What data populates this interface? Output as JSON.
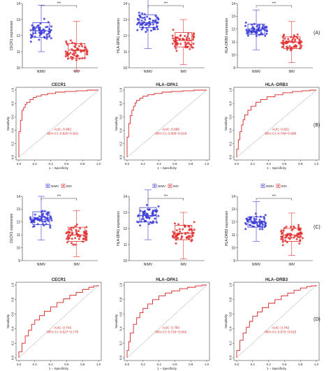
{
  "panel_labels": [
    "(A)",
    "(B)",
    "(C)",
    "(D)"
  ],
  "chart_data": [
    {
      "type": "box",
      "panel": "A",
      "ylabel": "CECR1 expression",
      "categories": [
        "NIMV",
        "IMV"
      ],
      "ylim": [
        10,
        14
      ],
      "yticks": [
        10,
        11,
        12,
        13,
        14
      ],
      "significance": "***",
      "boxes": [
        {
          "name": "NIMV",
          "color": "#3b3bd6",
          "whisker_low": 11.0,
          "q1": 11.9,
          "median": 12.3,
          "q3": 12.8,
          "whisker_high": 13.9
        },
        {
          "name": "IMV",
          "color": "#e03030",
          "whisker_low": 9.8,
          "q1": 10.6,
          "median": 11.1,
          "q3": 11.5,
          "whisker_high": 12.9
        }
      ]
    },
    {
      "type": "box",
      "panel": "A",
      "ylabel": "HLA-DPA1 expression",
      "categories": [
        "NIMV",
        "IMV"
      ],
      "ylim": [
        10,
        14
      ],
      "yticks": [
        10,
        11,
        12,
        13,
        14
      ],
      "significance": "***",
      "boxes": [
        {
          "name": "NIMV",
          "color": "#3b3bd6",
          "whisker_low": 11.2,
          "q1": 12.5,
          "median": 12.8,
          "q3": 13.3,
          "whisker_high": 14.3
        },
        {
          "name": "IMV",
          "color": "#e03030",
          "whisker_low": 10.2,
          "q1": 11.3,
          "median": 11.7,
          "q3": 12.2,
          "whisker_high": 13.0
        }
      ]
    },
    {
      "type": "box",
      "panel": "A",
      "ylabel": "HLA-DRB3 expression",
      "categories": [
        "NIMV",
        "IMV"
      ],
      "ylim": [
        9,
        14
      ],
      "yticks": [
        9,
        10,
        11,
        12,
        13,
        14
      ],
      "significance": "***",
      "boxes": [
        {
          "name": "NIMV",
          "color": "#3b3bd6",
          "whisker_low": 10.4,
          "q1": 11.6,
          "median": 12.0,
          "q3": 12.4,
          "whisker_high": 13.5
        },
        {
          "name": "IMV",
          "color": "#e03030",
          "whisker_low": 9.4,
          "q1": 10.5,
          "median": 11.0,
          "q3": 11.4,
          "whisker_high": 12.6
        }
      ]
    },
    {
      "type": "line",
      "panel": "B",
      "title": "CECR1",
      "xlabel": "1 − Specificity",
      "ylabel": "Sensitivity",
      "xlim": [
        0,
        1
      ],
      "ylim": [
        0,
        1
      ],
      "xticks": [
        0.0,
        0.2,
        0.4,
        0.6,
        0.8,
        1.0
      ],
      "yticks": [
        0.0,
        0.2,
        0.4,
        0.6,
        0.8,
        1.0
      ],
      "annotation": [
        "AUC: 0.862",
        "95% CI: 0.820−0.921"
      ],
      "x": [
        0,
        0.0,
        0.02,
        0.02,
        0.04,
        0.04,
        0.06,
        0.08,
        0.1,
        0.14,
        0.18,
        0.22,
        0.28,
        0.36,
        0.46,
        0.58,
        0.72,
        0.86,
        1.0
      ],
      "y": [
        0,
        0.38,
        0.42,
        0.55,
        0.6,
        0.7,
        0.74,
        0.79,
        0.82,
        0.86,
        0.89,
        0.91,
        0.93,
        0.95,
        0.97,
        0.98,
        0.99,
        1.0,
        1.0
      ]
    },
    {
      "type": "line",
      "panel": "B",
      "title": "HLA−DPA1",
      "xlabel": "1 − Specificity",
      "ylabel": "Sensitivity",
      "xlim": [
        0,
        1
      ],
      "ylim": [
        0,
        1
      ],
      "xticks": [
        0.0,
        0.2,
        0.4,
        0.6,
        0.8,
        1.0
      ],
      "yticks": [
        0.0,
        0.2,
        0.4,
        0.6,
        0.8,
        1.0
      ],
      "annotation": [
        "AUC: 0.866",
        "95% CI: 0.805−0.918"
      ],
      "x": [
        0,
        0.0,
        0.02,
        0.02,
        0.04,
        0.06,
        0.08,
        0.1,
        0.12,
        0.16,
        0.2,
        0.26,
        0.34,
        0.44,
        0.56,
        0.7,
        0.84,
        1.0
      ],
      "y": [
        0,
        0.3,
        0.36,
        0.5,
        0.62,
        0.7,
        0.76,
        0.81,
        0.85,
        0.88,
        0.91,
        0.93,
        0.95,
        0.97,
        0.98,
        0.99,
        1.0,
        1.0
      ]
    },
    {
      "type": "line",
      "panel": "B",
      "title": "HLA−DRB3",
      "xlabel": "1 − Specificity",
      "ylabel": "Sensitivity",
      "xlim": [
        0,
        1
      ],
      "ylim": [
        0,
        1
      ],
      "xticks": [
        0.0,
        0.2,
        0.4,
        0.6,
        0.8,
        1.0
      ],
      "yticks": [
        0.0,
        0.2,
        0.4,
        0.6,
        0.8,
        1.0
      ],
      "annotation": [
        "AUC: 0.821",
        "95% CI: 0.749−0.886"
      ],
      "x": [
        0,
        0.0,
        0.02,
        0.04,
        0.06,
        0.08,
        0.1,
        0.14,
        0.18,
        0.24,
        0.3,
        0.38,
        0.48,
        0.58,
        0.7,
        0.82,
        0.92,
        1.0
      ],
      "y": [
        0,
        0.12,
        0.26,
        0.38,
        0.48,
        0.56,
        0.63,
        0.7,
        0.76,
        0.82,
        0.86,
        0.9,
        0.93,
        0.96,
        0.98,
        0.99,
        1.0,
        1.0
      ]
    },
    {
      "type": "box",
      "panel": "C",
      "ylabel": "CECR1 expression",
      "categories": [
        "NIMV",
        "IMV"
      ],
      "legend": [
        "NIMV",
        "IMV"
      ],
      "ylim": [
        9,
        14
      ],
      "yticks": [
        9,
        10,
        11,
        12,
        13,
        14
      ],
      "significance": "***",
      "boxes": [
        {
          "name": "NIMV",
          "color": "#3b3bd6",
          "whisker_low": 10.6,
          "q1": 11.8,
          "median": 12.2,
          "q3": 12.8,
          "whisker_high": 14.0
        },
        {
          "name": "IMV",
          "color": "#e03030",
          "whisker_low": 9.3,
          "q1": 10.5,
          "median": 11.0,
          "q3": 11.6,
          "whisker_high": 12.9
        }
      ]
    },
    {
      "type": "box",
      "panel": "C",
      "ylabel": "HLA-DPA1 expression",
      "categories": [
        "NIMV",
        "IMV"
      ],
      "legend": [
        "NIMV",
        "IMV"
      ],
      "ylim": [
        10,
        14
      ],
      "yticks": [
        10,
        11,
        12,
        13,
        14
      ],
      "significance": "***",
      "boxes": [
        {
          "name": "NIMV",
          "color": "#3b3bd6",
          "whisker_low": 11.3,
          "q1": 12.4,
          "median": 12.8,
          "q3": 13.3,
          "whisker_high": 14.4
        },
        {
          "name": "IMV",
          "color": "#e03030",
          "whisker_low": 10.1,
          "q1": 11.3,
          "median": 11.7,
          "q3": 12.2,
          "whisker_high": 13.0
        }
      ]
    },
    {
      "type": "box",
      "panel": "C",
      "ylabel": "HLA-DRB3 expression",
      "categories": [
        "NIMV",
        "IMV"
      ],
      "legend": [
        "NIMV",
        "IMV"
      ],
      "ylim": [
        9,
        14
      ],
      "yticks": [
        9,
        10,
        11,
        12,
        13,
        14
      ],
      "significance": "***",
      "boxes": [
        {
          "name": "NIMV",
          "color": "#3b3bd6",
          "whisker_low": 10.5,
          "q1": 11.6,
          "median": 12.0,
          "q3": 12.4,
          "whisker_high": 13.6
        },
        {
          "name": "IMV",
          "color": "#e03030",
          "whisker_low": 9.4,
          "q1": 10.5,
          "median": 11.0,
          "q3": 11.5,
          "whisker_high": 12.7
        }
      ]
    },
    {
      "type": "line",
      "panel": "D",
      "title": "CECR1",
      "xlabel": "1 − Specificity",
      "ylabel": "Sensitivity",
      "xlim": [
        0,
        1
      ],
      "ylim": [
        0,
        1
      ],
      "xticks": [
        0.0,
        0.2,
        0.4,
        0.6,
        0.8,
        1.0
      ],
      "yticks": [
        0.0,
        0.2,
        0.4,
        0.6,
        0.8,
        1.0
      ],
      "annotation": [
        "AUC: 0.703",
        "95% CI: 0.627−0.775"
      ],
      "x": [
        0,
        0.0,
        0.04,
        0.08,
        0.12,
        0.16,
        0.2,
        0.26,
        0.32,
        0.4,
        0.48,
        0.56,
        0.64,
        0.72,
        0.8,
        0.88,
        0.94,
        1.0
      ],
      "y": [
        0,
        0.08,
        0.2,
        0.3,
        0.38,
        0.46,
        0.52,
        0.58,
        0.64,
        0.7,
        0.76,
        0.81,
        0.86,
        0.9,
        0.94,
        0.97,
        0.99,
        1.0
      ]
    },
    {
      "type": "line",
      "panel": "D",
      "title": "HLA−DPA1",
      "xlabel": "1 − Specificity",
      "ylabel": "Sensitivity",
      "xlim": [
        0,
        1
      ],
      "ylim": [
        0,
        1
      ],
      "xticks": [
        0.0,
        0.2,
        0.4,
        0.6,
        0.8,
        1.0
      ],
      "yticks": [
        0.0,
        0.2,
        0.4,
        0.6,
        0.8,
        1.0
      ],
      "annotation": [
        "AUC: 0.783",
        "95% CI: 0.718−0.842"
      ],
      "x": [
        0,
        0.0,
        0.02,
        0.04,
        0.08,
        0.12,
        0.16,
        0.2,
        0.26,
        0.32,
        0.4,
        0.48,
        0.56,
        0.66,
        0.76,
        0.86,
        0.94,
        1.0
      ],
      "y": [
        0,
        0.1,
        0.22,
        0.34,
        0.46,
        0.55,
        0.62,
        0.68,
        0.74,
        0.8,
        0.85,
        0.89,
        0.92,
        0.95,
        0.97,
        0.99,
        1.0,
        1.0
      ]
    },
    {
      "type": "line",
      "panel": "D",
      "title": "HLA−DRB3",
      "xlabel": "1 − Specificity",
      "ylabel": "Sensitivity",
      "xlim": [
        0,
        1
      ],
      "ylim": [
        0,
        1
      ],
      "xticks": [
        0.0,
        0.2,
        0.4,
        0.6,
        0.8,
        1.0
      ],
      "yticks": [
        0.0,
        0.2,
        0.4,
        0.6,
        0.8,
        1.0
      ],
      "annotation": [
        "AUC: 0.742",
        "95% CI: 0.672−0.815"
      ],
      "x": [
        0,
        0.0,
        0.04,
        0.08,
        0.12,
        0.16,
        0.2,
        0.26,
        0.32,
        0.4,
        0.48,
        0.56,
        0.64,
        0.72,
        0.8,
        0.88,
        0.94,
        1.0
      ],
      "y": [
        0,
        0.1,
        0.24,
        0.34,
        0.42,
        0.5,
        0.57,
        0.63,
        0.69,
        0.75,
        0.8,
        0.85,
        0.89,
        0.93,
        0.96,
        0.98,
        0.99,
        1.0
      ]
    }
  ]
}
